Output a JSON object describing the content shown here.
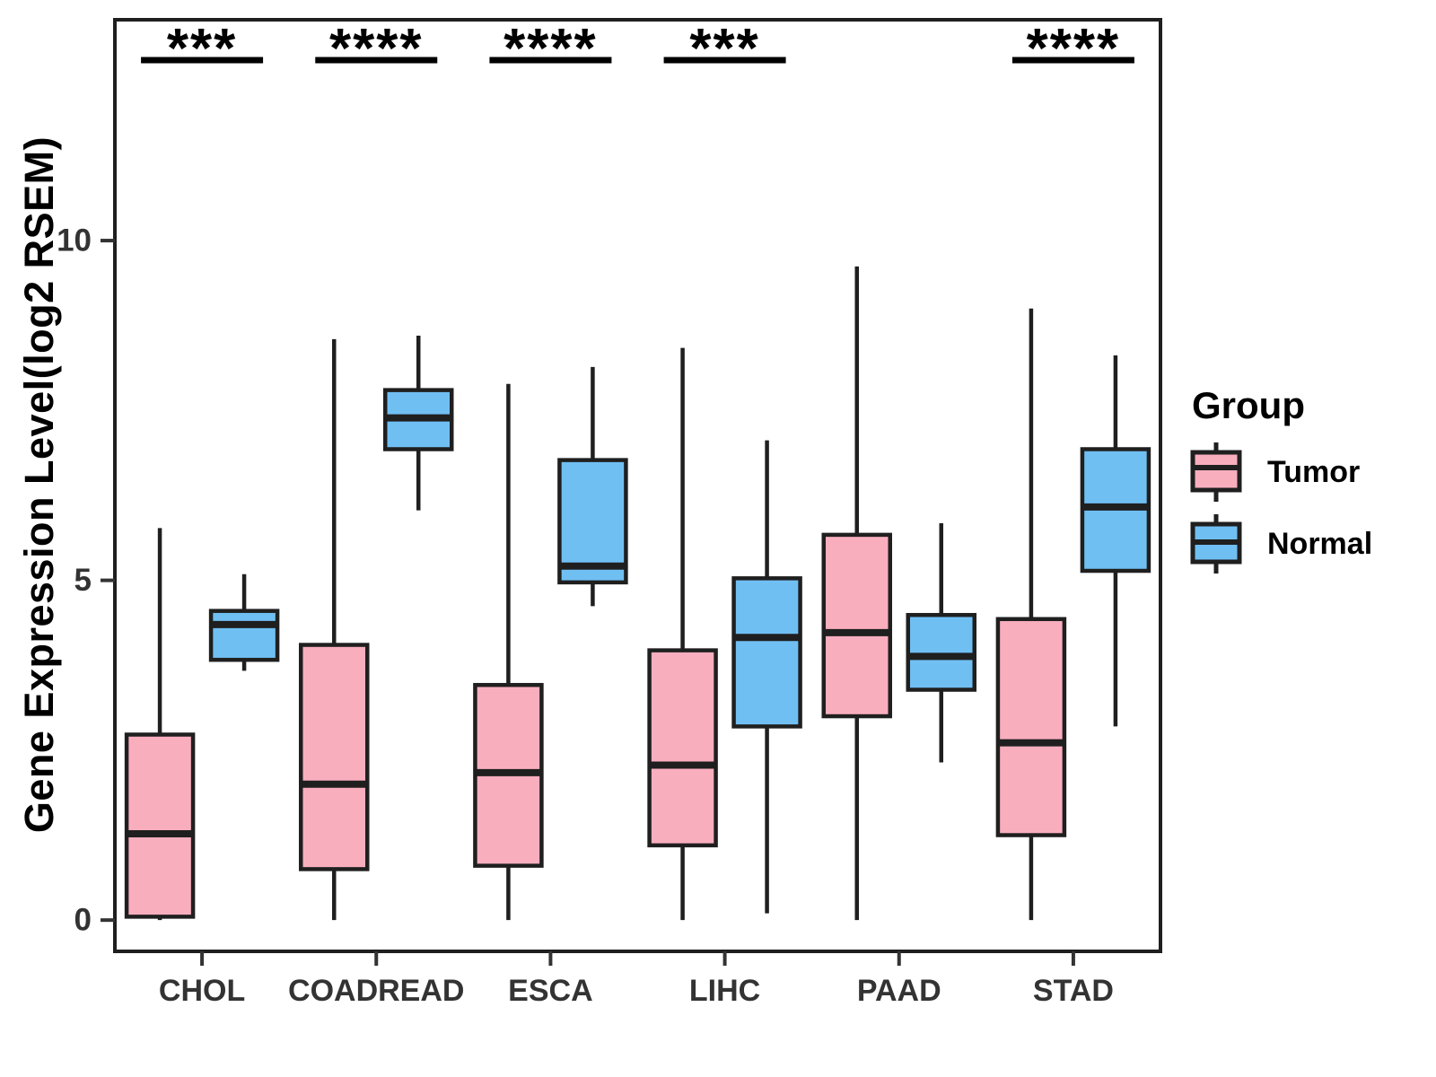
{
  "figure": {
    "background": "#FFFFFF"
  },
  "chart_data": {
    "type": "grouped_boxplot",
    "title": "",
    "xlabel": "",
    "ylabel": "Gene Expression Level(log2 RSEM)",
    "yticks": [
      0,
      5,
      10
    ],
    "ylim": [
      -0.46,
      13.25
    ],
    "grid": false,
    "legend_title": "Group",
    "legend_position": "right",
    "axis_text_color": "#333333",
    "box_border_color": "#1F1F1F",
    "significance_color": "#000000",
    "categories": [
      "CHOL",
      "COADREAD",
      "ESCA",
      "LIHC",
      "PAAD",
      "STAD"
    ],
    "series": [
      {
        "name": "Tumor",
        "color": "#F9AEBE",
        "boxes": [
          {
            "category": "CHOL",
            "whisker_low": 0,
            "q1": 0.05,
            "median": 1.27,
            "q3": 2.73,
            "whisker_high": 5.77
          },
          {
            "category": "COADREAD",
            "whisker_low": 0,
            "q1": 0.75,
            "median": 2.0,
            "q3": 4.05,
            "whisker_high": 8.55
          },
          {
            "category": "ESCA",
            "whisker_low": 0,
            "q1": 0.8,
            "median": 2.17,
            "q3": 3.46,
            "whisker_high": 7.89
          },
          {
            "category": "LIHC",
            "whisker_low": 0,
            "q1": 1.1,
            "median": 2.28,
            "q3": 3.97,
            "whisker_high": 8.42
          },
          {
            "category": "PAAD",
            "whisker_low": 0,
            "q1": 3.0,
            "median": 4.23,
            "q3": 5.67,
            "whisker_high": 9.62
          },
          {
            "category": "STAD",
            "whisker_low": 0,
            "q1": 1.25,
            "median": 2.61,
            "q3": 4.43,
            "whisker_high": 9.0
          }
        ]
      },
      {
        "name": "Normal",
        "color": "#70BFF3",
        "boxes": [
          {
            "category": "CHOL",
            "whisker_low": 3.67,
            "q1": 3.83,
            "median": 4.35,
            "q3": 4.55,
            "whisker_high": 5.09
          },
          {
            "category": "COADREAD",
            "whisker_low": 6.03,
            "q1": 6.93,
            "median": 7.39,
            "q3": 7.8,
            "whisker_high": 8.6
          },
          {
            "category": "ESCA",
            "whisker_low": 4.62,
            "q1": 4.97,
            "median": 5.21,
            "q3": 6.77,
            "whisker_high": 8.14
          },
          {
            "category": "LIHC",
            "whisker_low": 0.1,
            "q1": 2.85,
            "median": 4.16,
            "q3": 5.03,
            "whisker_high": 7.06
          },
          {
            "category": "PAAD",
            "whisker_low": 2.32,
            "q1": 3.39,
            "median": 3.88,
            "q3": 4.49,
            "whisker_high": 5.84
          },
          {
            "category": "STAD",
            "whisker_low": 2.85,
            "q1": 5.14,
            "median": 6.08,
            "q3": 6.93,
            "whisker_high": 8.31
          }
        ]
      }
    ],
    "significance": [
      {
        "category": "CHOL",
        "label": "***"
      },
      {
        "category": "COADREAD",
        "label": "****"
      },
      {
        "category": "ESCA",
        "label": "****"
      },
      {
        "category": "LIHC",
        "label": "***"
      },
      {
        "category": "STAD",
        "label": "****"
      }
    ]
  }
}
